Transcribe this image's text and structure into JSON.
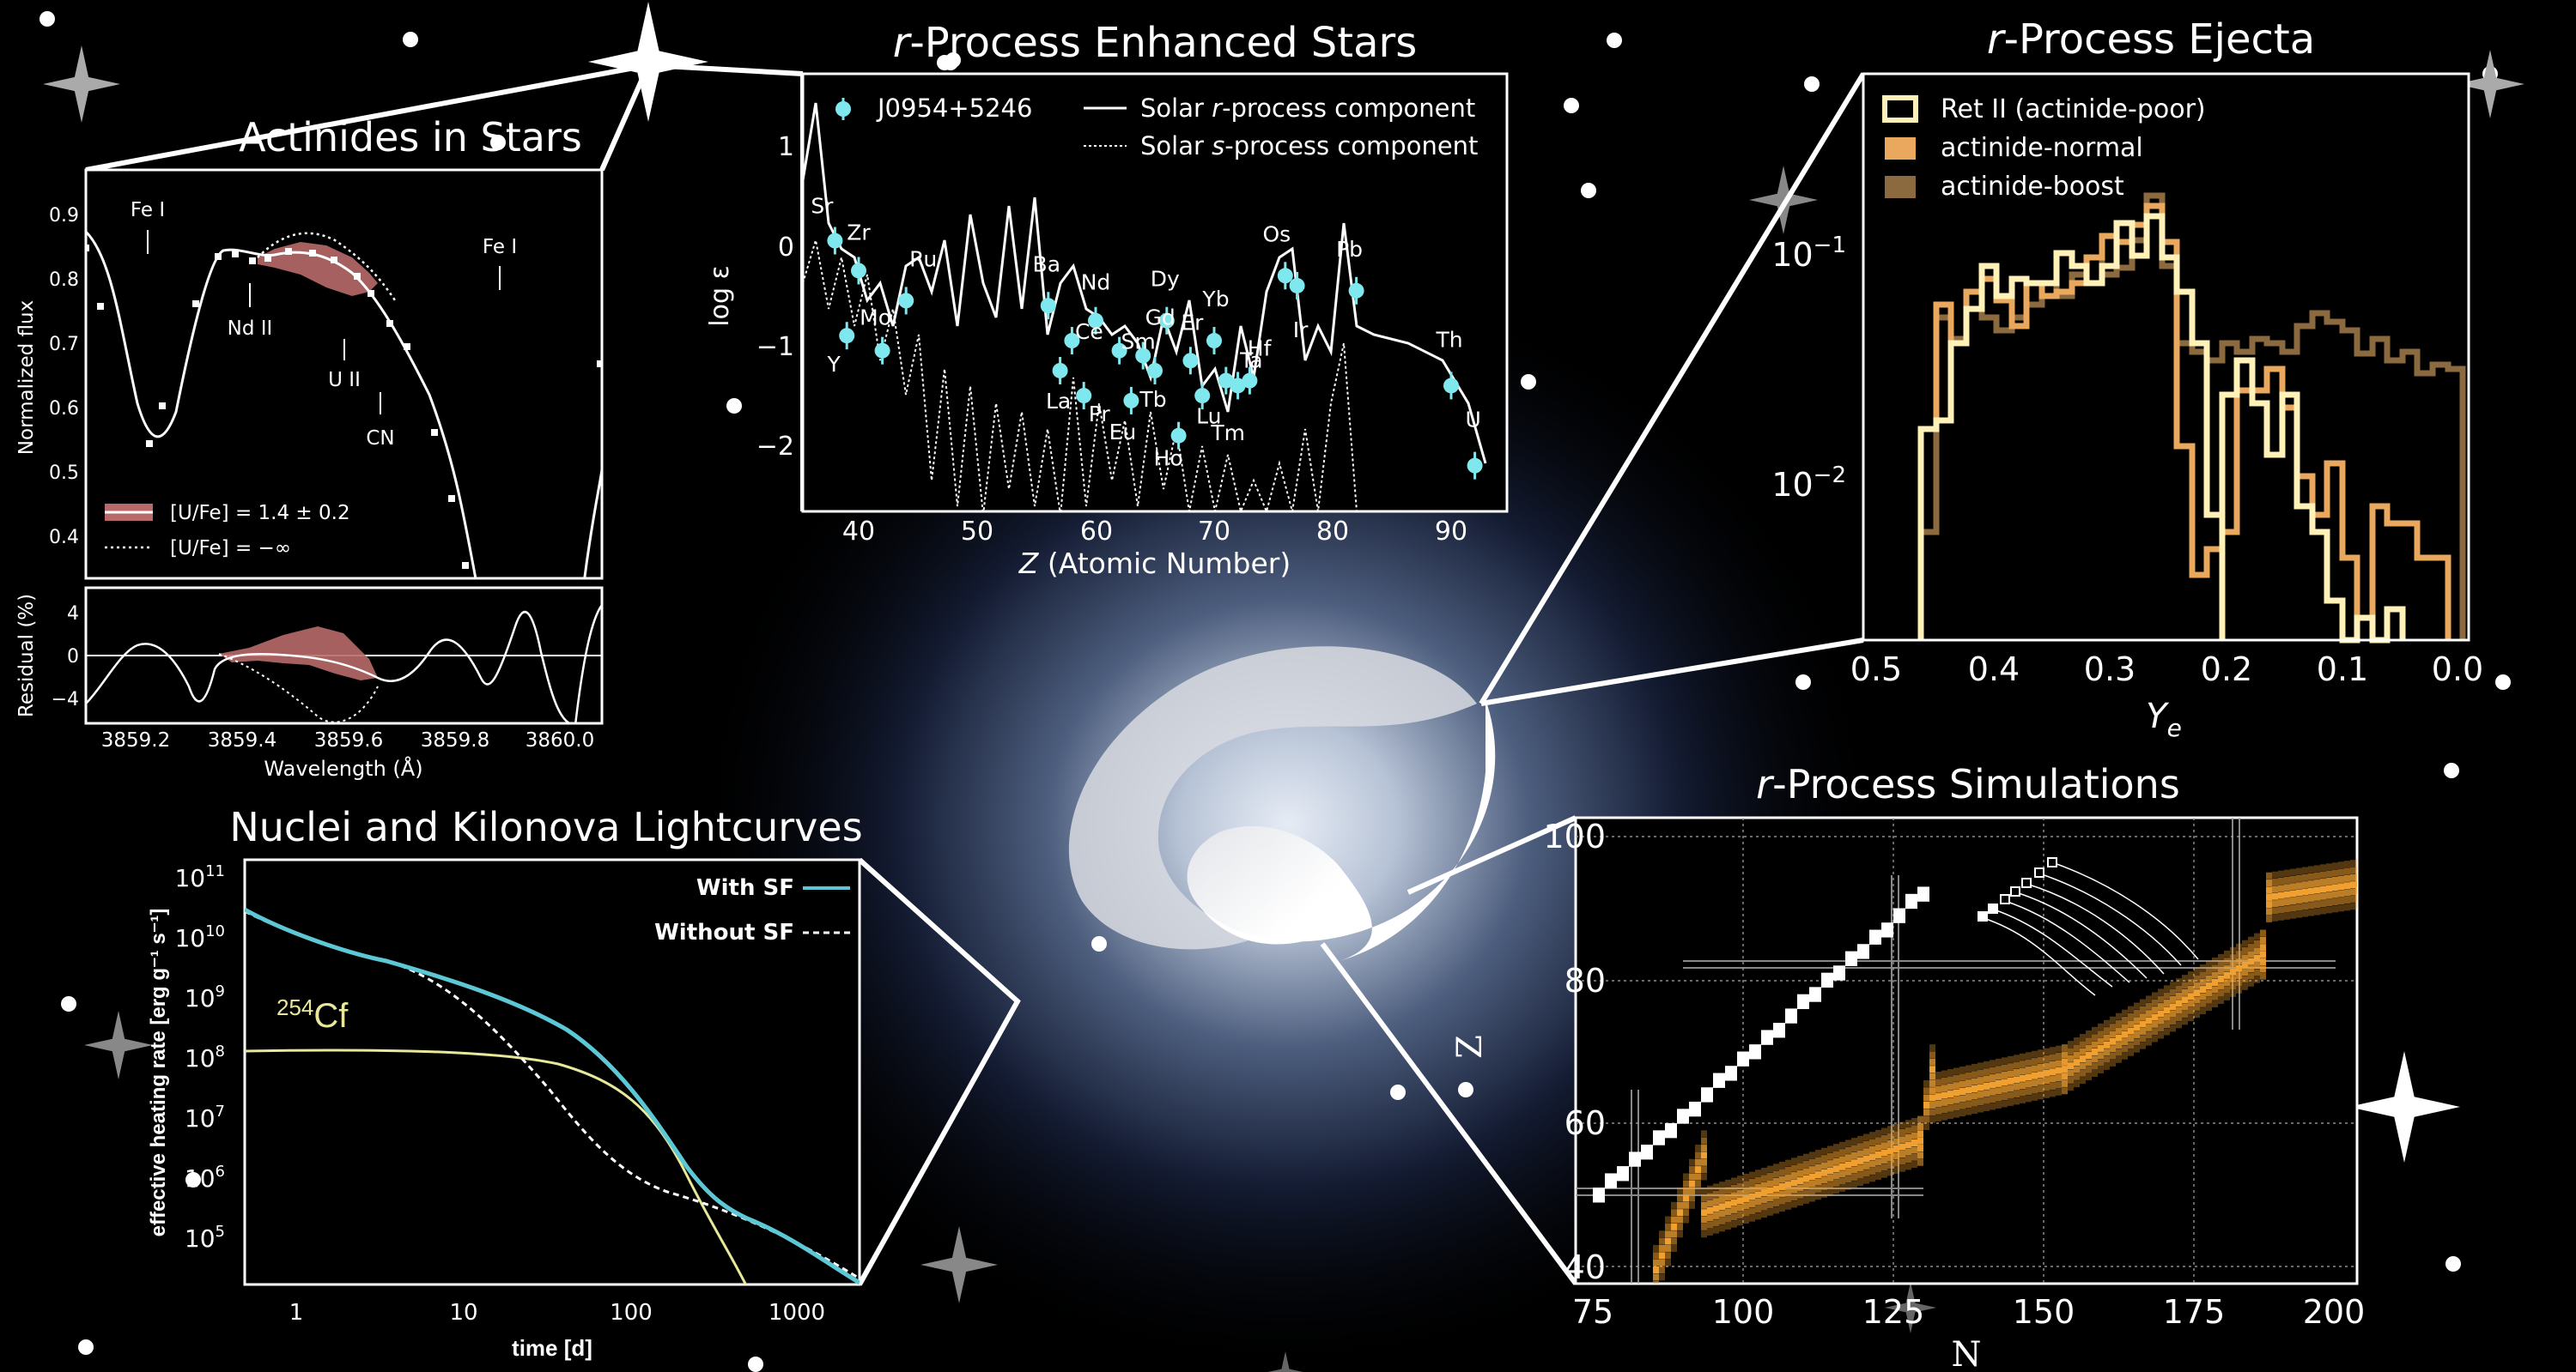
{
  "titles": {
    "actinides": "Actinides in Stars",
    "rprocess_pre": "r",
    "rprocess_post": "-Process Enhanced Stars",
    "ejecta_pre": "r",
    "ejecta_post": "-Process Ejecta",
    "sim_pre": "r",
    "sim_post": "-Process Simulations",
    "kilonova": "Nuclei and Kilonova Lightcurves"
  },
  "panel_actinides": {
    "ylabel_top": "Normalized flux",
    "ylabel_bottom": "Residual (%)",
    "xlabel": "Wavelength (Å)",
    "yticks_top": [
      "0.9",
      "0.8",
      "0.7",
      "0.6",
      "0.5",
      "0.4"
    ],
    "yticks_bottom": [
      "4",
      "0",
      "−4"
    ],
    "xticks": [
      "3859.2",
      "3859.4",
      "3859.6",
      "3859.8",
      "3860.0"
    ],
    "line_labels": [
      "Fe I",
      "Nd II",
      "U II",
      "CN",
      "Fe I"
    ],
    "legend": [
      "[U/Fe] = 1.4 ± 0.2",
      "[U/Fe] = −∞"
    ]
  },
  "panel_rprocess": {
    "ylabel": "log ε",
    "xlabel_italic": "Z",
    "xlabel_rest": " (Atomic Number)",
    "legend": {
      "star": "J0954+5246",
      "solar_r_pre": "Solar ",
      "solar_r_it": "r",
      "solar_r_post": "-process component",
      "solar_s_pre": "Solar ",
      "solar_s_it": "s",
      "solar_s_post": "-process component"
    },
    "yticks": [
      "1",
      "0",
      "−1",
      "−2"
    ],
    "xticks": [
      "40",
      "50",
      "60",
      "70",
      "80",
      "90"
    ],
    "elements": [
      "Sr",
      "Zr",
      "Y",
      "Mo",
      "Ru",
      "Ba",
      "Ce",
      "La",
      "Nd",
      "Pr",
      "Sm",
      "Eu",
      "Gd",
      "Tb",
      "Dy",
      "Ho",
      "Er",
      "Tm",
      "Yb",
      "Lu",
      "Hf",
      "Ta",
      "Os",
      "Ir",
      "Pb",
      "Th",
      "U"
    ]
  },
  "panel_ejecta": {
    "xlabel": "Y",
    "xlabel_sub": "e",
    "yticks": [
      "10",
      "10"
    ],
    "ytick_exp": [
      "−1",
      "−2"
    ],
    "xticks": [
      "0.5",
      "0.4",
      "0.3",
      "0.2",
      "0.1",
      "0.0"
    ],
    "legend": [
      "Ret II (actinide-poor)",
      "actinide-normal",
      "actinide-boost"
    ]
  },
  "panel_sim": {
    "xlabel": "N",
    "ylabel": "Z",
    "xticks": [
      "75",
      "100",
      "125",
      "150",
      "175",
      "200"
    ],
    "yticks": [
      "100",
      "80",
      "60",
      "40"
    ]
  },
  "panel_kilonova": {
    "ylabel": "effective heating rate [erg g⁻¹ s⁻¹]",
    "xlabel": "time [d]",
    "xticks": [
      "1",
      "10",
      "100",
      "1000"
    ],
    "ytick_exps": [
      "11",
      "10",
      "9",
      "8",
      "7",
      "6",
      "5"
    ],
    "ytick_base": "10",
    "legend": [
      "With SF",
      "Without SF"
    ],
    "isotope_mass": "254",
    "isotope_symbol": "Cf"
  },
  "colors": {
    "background": "#000000",
    "cyan_data": "#7fe7ee",
    "band_red": "#b86a6a",
    "ret2": "#fff1b8",
    "actinide_normal": "#e9a85d",
    "actinide_boost": "#8b6a3f",
    "sim_orange": "#f0a030",
    "kilonova_cyan": "#5cc8d6",
    "kilonova_yellow": "#e8e89a"
  }
}
